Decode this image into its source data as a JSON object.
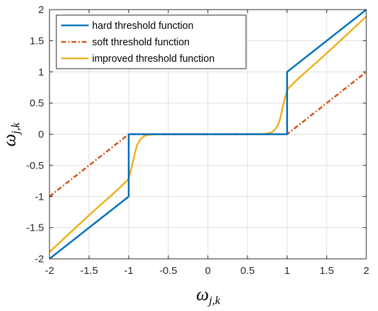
{
  "chart_data": {
    "type": "line",
    "title": "",
    "xlabel": {
      "symbol": "ω",
      "subscript": "j,k"
    },
    "ylabel": {
      "symbol": "ω",
      "subscript": "j,k"
    },
    "xlim": [
      -2,
      2
    ],
    "ylim": [
      -2,
      2
    ],
    "xticks": [
      -2,
      -1.5,
      -1,
      -0.5,
      0,
      0.5,
      1,
      1.5,
      2
    ],
    "yticks": [
      -2,
      -1.5,
      -1,
      -0.5,
      0,
      0.5,
      1,
      1.5,
      2
    ],
    "xtick_labels": [
      "-2",
      "-1.5",
      "-1",
      "-0.5",
      "0",
      "0.5",
      "1",
      "1.5",
      "2"
    ],
    "ytick_labels": [
      "-2",
      "-1.5",
      "-1",
      "-0.5",
      "0",
      "0.5",
      "1",
      "1.5",
      "2"
    ],
    "grid": true,
    "legend_position": "top-left",
    "series": [
      {
        "name": "hard threshold function",
        "color": "#0072BD",
        "dash": "solid",
        "x": [
          -2,
          -1,
          -1,
          1,
          1,
          2
        ],
        "y": [
          -2,
          -1,
          0,
          0,
          1,
          2
        ]
      },
      {
        "name": "soft threshold function",
        "color": "#D95319",
        "dash": "dashdot",
        "x": [
          -2,
          -1,
          1,
          2
        ],
        "y": [
          -1,
          0,
          0,
          1
        ]
      },
      {
        "name": "improved threshold function",
        "color": "#EDB120",
        "dash": "solid",
        "x": [
          -2,
          -1.5,
          -1.2,
          -1.05,
          -1,
          -0.95,
          -0.9,
          -0.85,
          -0.8,
          -0.75,
          -0.7,
          -0.6,
          -0.5,
          0,
          0.5,
          0.6,
          0.7,
          0.75,
          0.8,
          0.85,
          0.9,
          0.95,
          1,
          1.05,
          1.2,
          1.5,
          2
        ],
        "y": [
          -1.89,
          -1.3,
          -0.96,
          -0.78,
          -0.7,
          -0.46,
          -0.2,
          -0.08,
          -0.03,
          -0.01,
          -0.004,
          -0.001,
          0,
          0,
          0,
          0.001,
          0.004,
          0.01,
          0.03,
          0.08,
          0.2,
          0.46,
          0.7,
          0.78,
          0.96,
          1.3,
          1.89
        ]
      }
    ]
  }
}
